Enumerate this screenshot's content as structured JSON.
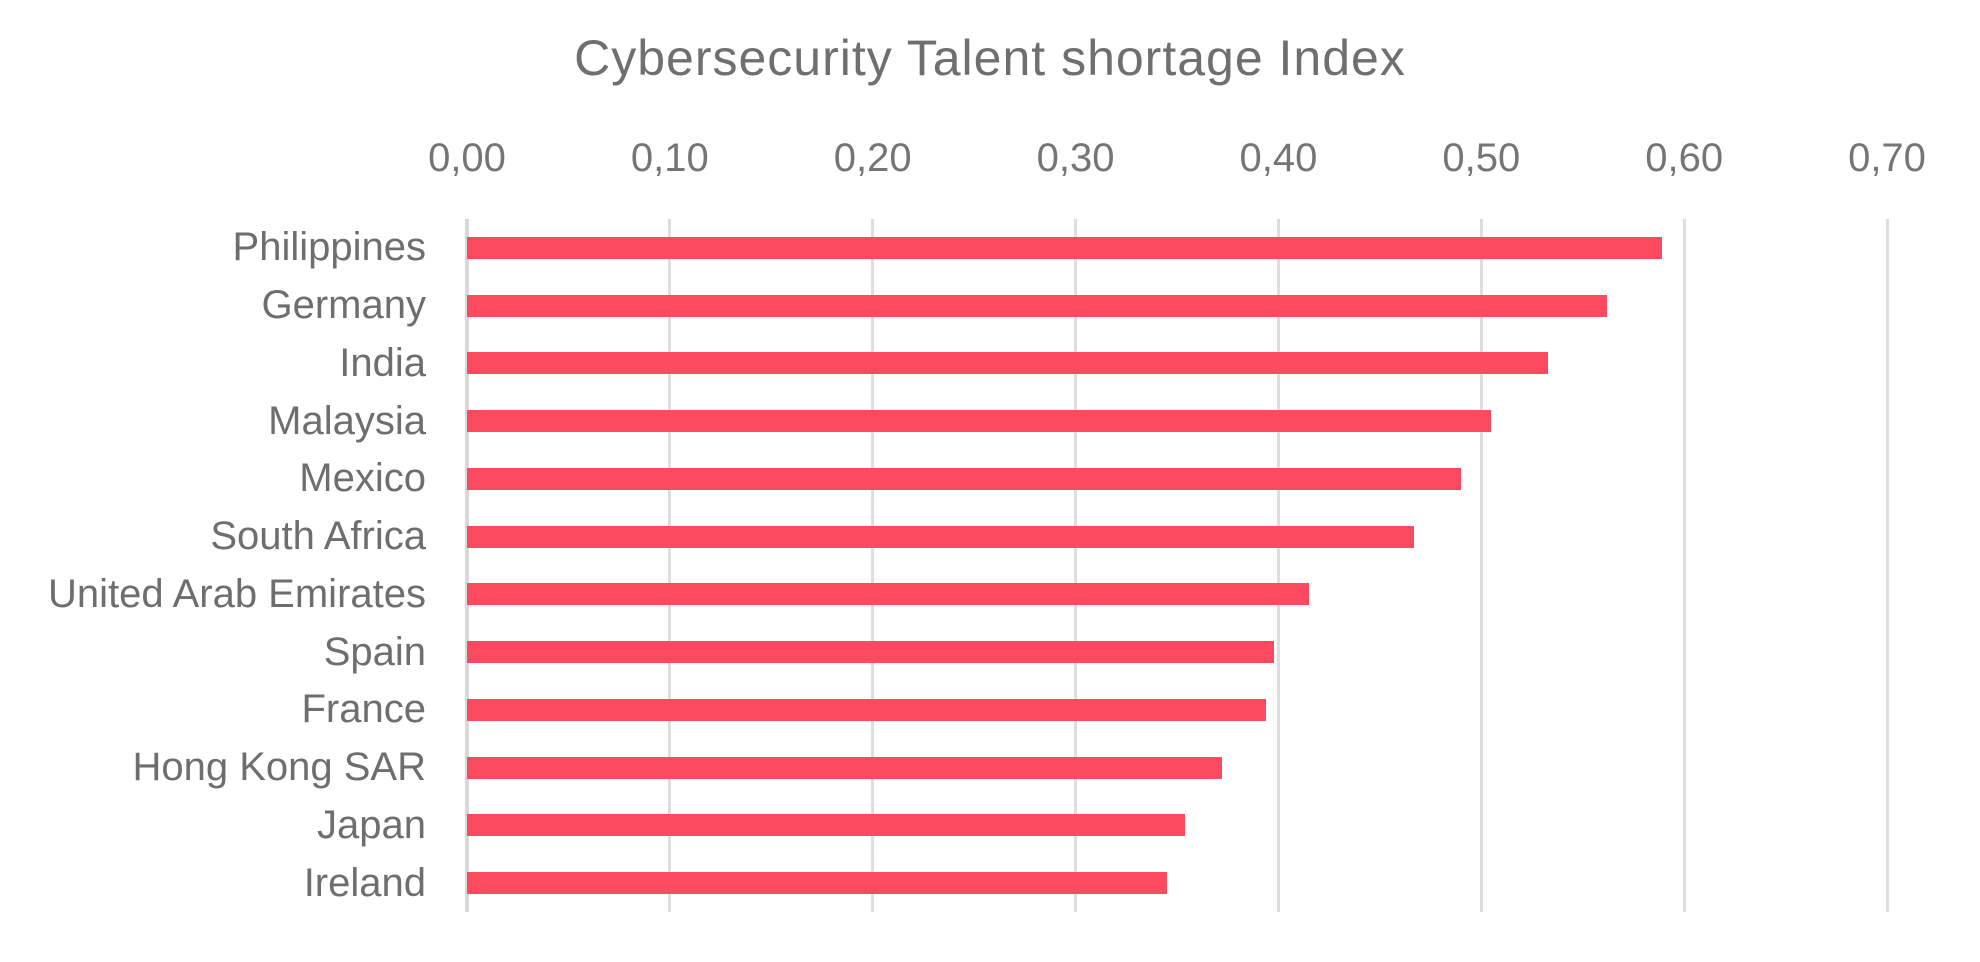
{
  "title": "Cybersecurity Talent shortage Index",
  "chart_data": {
    "type": "bar",
    "orientation": "horizontal",
    "title": "Cybersecurity Talent shortage Index",
    "categories": [
      "Philippines",
      "Germany",
      "India",
      "Malaysia",
      "Mexico",
      "South Africa",
      "United Arab Emirates",
      "Spain",
      "France",
      "Hong Kong SAR",
      "Japan",
      "Ireland"
    ],
    "values": [
      0.589,
      0.562,
      0.533,
      0.505,
      0.49,
      0.467,
      0.415,
      0.398,
      0.394,
      0.372,
      0.354,
      0.345
    ],
    "x_tick_labels": [
      "0,00",
      "0,10",
      "0,20",
      "0,30",
      "0,40",
      "0,50",
      "0,60",
      "0,70"
    ],
    "xlim": [
      0,
      0.7
    ],
    "xlabel": "",
    "ylabel": "",
    "decimal_separator": ",",
    "grid": true,
    "legend": false,
    "bar_color": "#FB4A5F",
    "gridline_color": "#DEDEDE",
    "axis_line_color": "#D8D8D8",
    "text_color": "#6F6F6F",
    "background_color": "#FFFFFF"
  }
}
